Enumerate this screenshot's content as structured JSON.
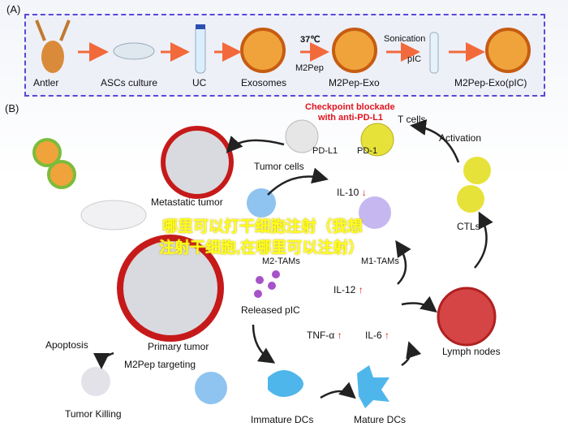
{
  "panel_a": {
    "label": "(A)",
    "steps": [
      "Antler",
      "ASCs culture",
      "UC",
      "Exosomes",
      "M2Pep-Exo",
      "M2Pep-Exo(pIC)"
    ],
    "temperature": "37℃",
    "peptide": "M2Pep",
    "sonication": "Sonication",
    "pic": "pIC"
  },
  "panel_b": {
    "label": "(B)",
    "checkpoint": "Checkpoint blockade",
    "checkpoint2": "with anti-PD-L1",
    "t_cells": "T cells",
    "pd_l1": "PD-L1",
    "pd_1": "PD-1",
    "tumor_cells": "Tumor cells",
    "activation": "Activation",
    "metastatic": "Metastatic tumor",
    "il10": "IL-10",
    "ctls": "CTLs",
    "m2tams": "M2-TAMs",
    "m1tams": "M1-TAMs",
    "il12": "IL-12",
    "released_pic": "Released pIC",
    "apoptosis": "Apoptosis",
    "primary": "Primary tumor",
    "targeting": "M2Pep targeting",
    "tnf": "TNF-α",
    "il6": "IL-6",
    "lymph": "Lymph nodes",
    "killing": "Tumor Killing",
    "immature": "Immature DCs",
    "mature": "Mature DCs",
    "up": "↑",
    "down": "↓"
  },
  "overlay": {
    "line1": "哪里可以打干细胞注射（我想",
    "line2": "注射干细胞,在哪里可以注射）"
  },
  "colors": {
    "border": "#5a48d8",
    "arrow": "#f26a3c",
    "red": "#e0141e",
    "overlay": "#ffff1a"
  }
}
